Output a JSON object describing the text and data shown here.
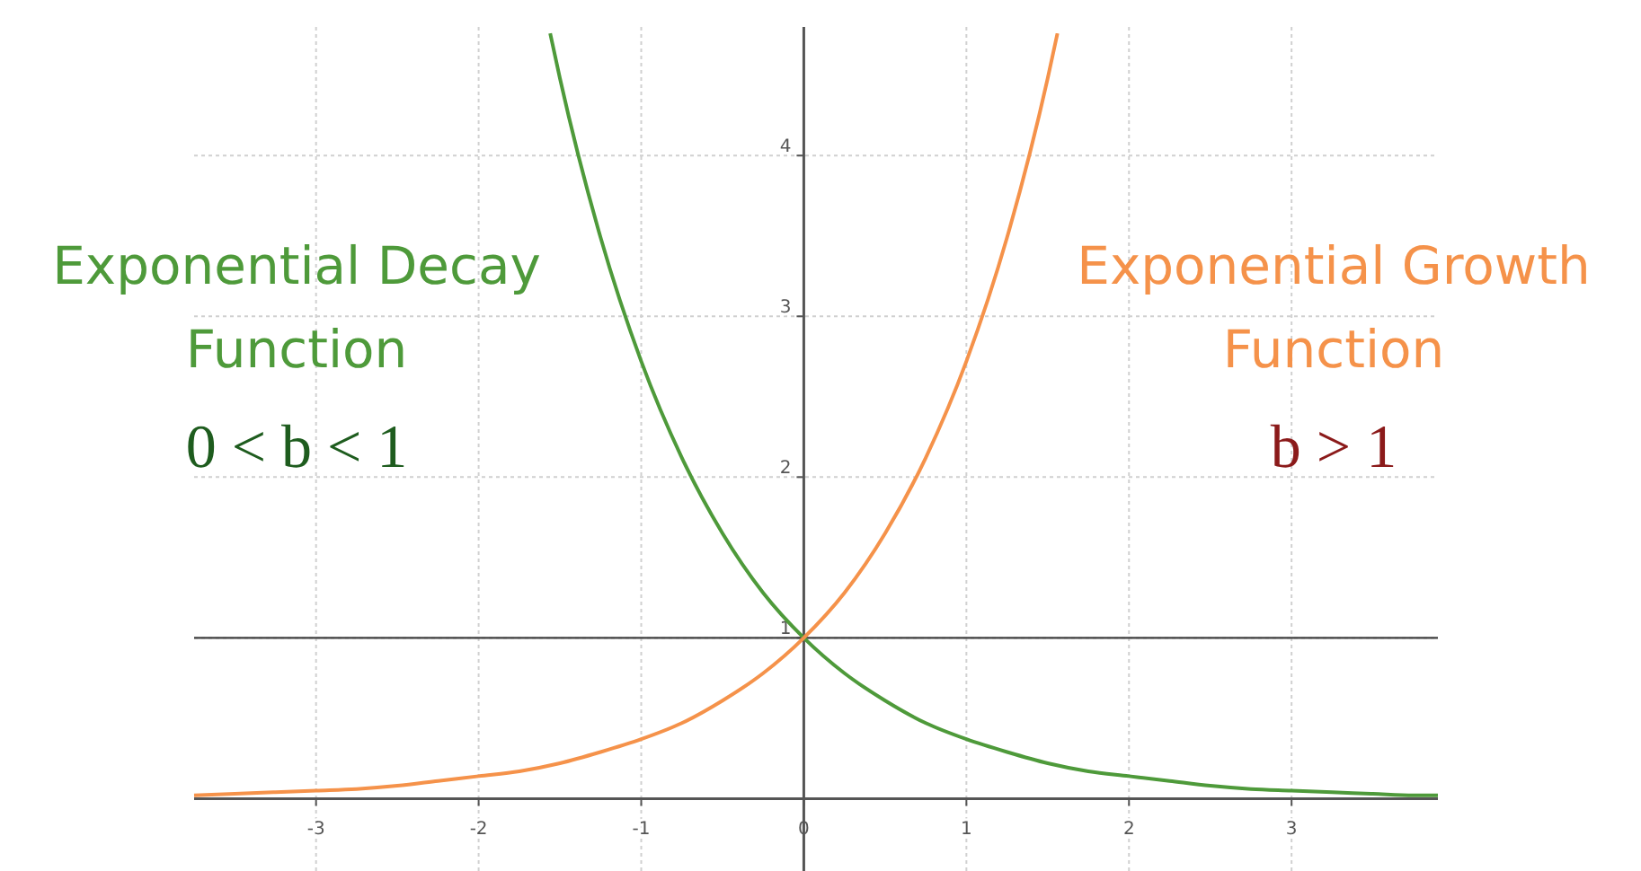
{
  "chart_data": {
    "type": "line",
    "xlim": [
      -3.75,
      3.9
    ],
    "ylim": [
      -0.45,
      4.8
    ],
    "xticks": [
      -3,
      -2,
      -1,
      0,
      1,
      2,
      3
    ],
    "yticks": [
      1,
      2,
      3,
      4
    ],
    "grid": true,
    "legend": false,
    "marker": "none",
    "line_style": "solid",
    "ref_lines": [
      {
        "axis": "y",
        "value": 1,
        "color": "#404040"
      }
    ],
    "annotations": [
      "0 < b < 1",
      "b > 1"
    ],
    "series": [
      {
        "name": "Exponential Decay Function",
        "color": "#4e9a3a",
        "x": [
          -1.56,
          -1.5,
          -1.25,
          -1,
          -0.75,
          -0.5,
          -0.25,
          0,
          0.25,
          0.5,
          0.75,
          1,
          1.25,
          1.5,
          1.75,
          2,
          2.25,
          2.5,
          2.75,
          3,
          3.25,
          3.5,
          3.75,
          3.9
        ],
        "values": [
          4.76,
          4.48,
          3.49,
          2.72,
          2.12,
          1.65,
          1.28,
          1,
          0.78,
          0.61,
          0.47,
          0.37,
          0.29,
          0.22,
          0.17,
          0.14,
          0.11,
          0.08,
          0.06,
          0.05,
          0.04,
          0.03,
          0.02,
          0.02
        ]
      },
      {
        "name": "Exponential Growth Function",
        "color": "#f5924a",
        "x": [
          -3.75,
          -3.5,
          -3.25,
          -3,
          -2.75,
          -2.5,
          -2.25,
          -2,
          -1.75,
          -1.5,
          -1.25,
          -1,
          -0.75,
          -0.5,
          -0.25,
          0,
          0.25,
          0.5,
          0.75,
          1,
          1.25,
          1.5,
          1.56
        ],
        "values": [
          0.02,
          0.03,
          0.04,
          0.05,
          0.06,
          0.08,
          0.11,
          0.14,
          0.17,
          0.22,
          0.29,
          0.37,
          0.47,
          0.61,
          0.78,
          1,
          1.28,
          1.65,
          2.12,
          2.72,
          3.49,
          4.48,
          4.76
        ]
      }
    ]
  }
}
